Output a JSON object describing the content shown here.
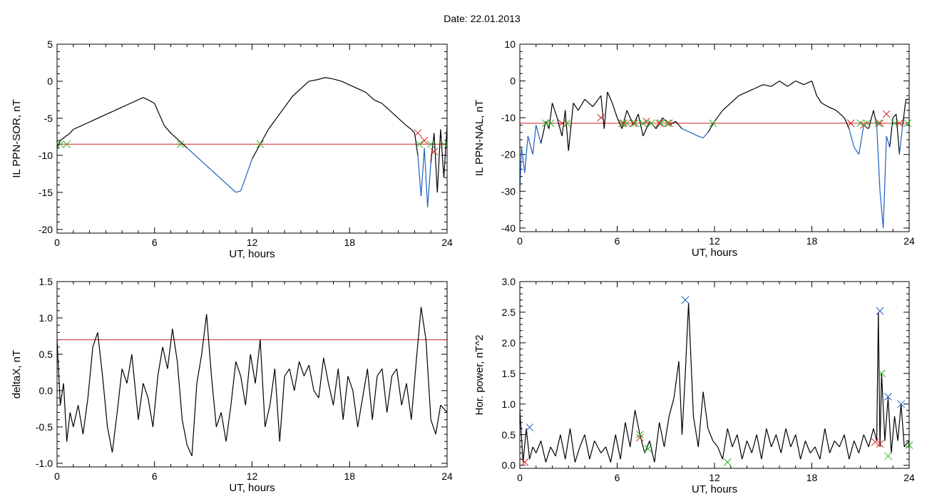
{
  "header": {
    "date_text": "Date:  22.01.2013"
  },
  "colors": {
    "frame": "#000000",
    "data": "#000000",
    "below": "#1f5fbf",
    "threshold": "#d62020",
    "mark_red": "#d62020",
    "mark_green": "#28b428",
    "mark_blue": "#1f5fbf"
  },
  "chart_data": [
    {
      "id": "p1",
      "type": "line",
      "xlabel": "UT, hours",
      "ylabel": "IL PPN-SOR, nT",
      "xlim": [
        0,
        24
      ],
      "ylim": [
        -20.5,
        5
      ],
      "xticks": [
        0,
        6,
        12,
        18,
        24
      ],
      "yticks": [
        5,
        0,
        -5,
        -10,
        -15,
        -20
      ],
      "threshold": -8.5,
      "x": [
        0,
        0.2,
        0.5,
        0.8,
        1,
        1.5,
        2,
        2.5,
        3,
        3.5,
        4,
        4.5,
        5,
        5.3,
        5.6,
        6,
        6.3,
        6.6,
        7,
        7.5,
        8,
        8.5,
        9,
        9.5,
        10,
        10.5,
        11,
        11.3,
        11.6,
        12,
        12.5,
        13,
        13.5,
        14,
        14.5,
        15,
        15.5,
        16,
        16.5,
        17,
        17.5,
        18,
        18.5,
        19,
        19.5,
        20,
        20.5,
        21,
        21.5,
        21.8,
        22,
        22.2,
        22.4,
        22.6,
        22.8,
        23,
        23.2,
        23.4,
        23.6,
        23.8,
        24
      ],
      "values": [
        -9,
        -8,
        -7.5,
        -7,
        -6.5,
        -6,
        -5.5,
        -5,
        -4.5,
        -4,
        -3.5,
        -3,
        -2.5,
        -2.2,
        -2.5,
        -3,
        -4.5,
        -6,
        -7,
        -8,
        -9,
        -10,
        -11,
        -12,
        -13,
        -14,
        -15,
        -14.8,
        -13,
        -10.5,
        -8.5,
        -6.5,
        -5,
        -3.5,
        -2,
        -1,
        0,
        0.2,
        0.5,
        0.3,
        0,
        -0.5,
        -1,
        -1.5,
        -2.5,
        -3,
        -4,
        -5,
        -6,
        -6.5,
        -7,
        -10,
        -15.5,
        -9,
        -17,
        -11,
        -7,
        -15,
        -6.5,
        -13,
        -6
      ],
      "markers_red_x": [
        22.2,
        22.6,
        23.2
      ],
      "markers_red_y": [
        -7,
        -8,
        -9.5
      ],
      "markers_green_x": [
        0.2,
        0.6,
        7.6,
        12.5,
        22.3,
        23,
        23.8
      ],
      "markers_green_y": [
        -8.5,
        -8.5,
        -8.5,
        -8.5,
        -8.5,
        -8.5,
        -8.5
      ]
    },
    {
      "id": "p2",
      "type": "line",
      "xlabel": "UT, hours",
      "ylabel": "IL PPN-NAL, nT",
      "xlim": [
        0,
        24
      ],
      "ylim": [
        -41,
        10
      ],
      "xticks": [
        0,
        6,
        12,
        18,
        24
      ],
      "yticks": [
        10,
        0,
        -10,
        -20,
        -30,
        -40
      ],
      "threshold": -11.5,
      "x": [
        0,
        0.1,
        0.3,
        0.5,
        0.8,
        1,
        1.3,
        1.6,
        1.8,
        2,
        2.3,
        2.6,
        2.8,
        3,
        3.3,
        3.6,
        4,
        4.5,
        5,
        5.2,
        5.4,
        5.7,
        6,
        6.3,
        6.6,
        7,
        7.3,
        7.6,
        8,
        8.4,
        8.8,
        9.2,
        9.6,
        10,
        10.5,
        11,
        11.3,
        11.6,
        12,
        12.5,
        13,
        13.5,
        14,
        14.5,
        15,
        15.5,
        16,
        16.5,
        17,
        17.5,
        18,
        18.3,
        18.6,
        19,
        19.5,
        20,
        20.3,
        20.6,
        20.9,
        21.2,
        21.5,
        21.8,
        22,
        22.2,
        22.4,
        22.6,
        22.8,
        23,
        23.2,
        23.4,
        23.6,
        23.8,
        24
      ],
      "values": [
        -30,
        -18,
        -25,
        -15,
        -20,
        -12,
        -17,
        -11,
        -13,
        -6,
        -10,
        -15,
        -8,
        -19,
        -6,
        -8,
        -5,
        -7,
        -4,
        -13,
        -3,
        -6,
        -10,
        -13,
        -8,
        -12,
        -9,
        -15,
        -11,
        -13,
        -10,
        -12,
        -11,
        -13,
        -14,
        -15,
        -15.5,
        -14,
        -11,
        -8,
        -6,
        -4,
        -3,
        -2,
        -1,
        -1.5,
        0,
        -1.5,
        0,
        -1,
        0,
        -4,
        -6,
        -7,
        -8,
        -10,
        -13,
        -18,
        -20,
        -12,
        -13,
        -8,
        -12,
        -30,
        -40,
        -15,
        -18,
        -10,
        -9,
        -20,
        -12,
        -5,
        -5
      ],
      "markers_red_x": [
        2.6,
        5,
        6.4,
        7,
        7.8,
        8.6,
        9.2,
        20.4,
        21.2,
        22.2,
        22.6,
        23.4
      ],
      "markers_red_y": [
        -11.5,
        -10,
        -11.5,
        -11.5,
        -11,
        -11.5,
        -11.5,
        -11.5,
        -12,
        -11.5,
        -9,
        -11.5
      ],
      "markers_green_x": [
        1.6,
        1.9,
        2.9,
        6.3,
        6.6,
        7.1,
        7.6,
        8.1,
        8.7,
        9.1,
        11.9,
        21,
        21.4,
        22.1,
        23.1,
        23.9
      ],
      "markers_green_y": [
        -11.5,
        -11.5,
        -11.5,
        -11.5,
        -11.5,
        -11.5,
        -11.5,
        -11.5,
        -11.5,
        -11.5,
        -11.5,
        -11.5,
        -11.5,
        -11.5,
        -11.5,
        -11.5
      ]
    },
    {
      "id": "p3",
      "type": "line",
      "xlabel": "UT, hours",
      "ylabel": "deltaX, nT",
      "xlim": [
        0,
        24
      ],
      "ylim": [
        -1.05,
        1.5
      ],
      "xticks": [
        0,
        6,
        12,
        18,
        24
      ],
      "yticks": [
        1.5,
        1.0,
        0.5,
        0.0,
        -0.5,
        -1.0
      ],
      "threshold": 0.7,
      "x": [
        0,
        0.2,
        0.4,
        0.6,
        0.8,
        1,
        1.3,
        1.6,
        1.9,
        2.2,
        2.5,
        2.8,
        3.1,
        3.4,
        3.7,
        4,
        4.3,
        4.6,
        5,
        5.3,
        5.6,
        5.9,
        6.2,
        6.5,
        6.8,
        7.1,
        7.4,
        7.7,
        8,
        8.3,
        8.6,
        8.9,
        9.2,
        9.5,
        9.8,
        10.1,
        10.4,
        10.7,
        11,
        11.3,
        11.6,
        11.9,
        12.2,
        12.5,
        12.8,
        13.1,
        13.4,
        13.7,
        14,
        14.3,
        14.6,
        14.9,
        15.2,
        15.5,
        15.8,
        16.1,
        16.4,
        16.7,
        17,
        17.3,
        17.6,
        17.9,
        18.2,
        18.5,
        18.8,
        19.1,
        19.4,
        19.7,
        20,
        20.3,
        20.6,
        20.9,
        21.2,
        21.5,
        21.8,
        22.1,
        22.4,
        22.7,
        23,
        23.3,
        23.6,
        24
      ],
      "values": [
        0.7,
        -0.2,
        0.1,
        -0.7,
        -0.3,
        -0.5,
        -0.2,
        -0.6,
        -0.1,
        0.6,
        0.8,
        0.2,
        -0.5,
        -0.85,
        -0.3,
        0.3,
        0.1,
        0.5,
        -0.4,
        0.1,
        -0.1,
        -0.5,
        0.2,
        0.6,
        0.3,
        0.85,
        0.4,
        -0.4,
        -0.75,
        -0.9,
        0.1,
        0.5,
        1.05,
        0.2,
        -0.5,
        -0.3,
        -0.7,
        -0.2,
        0.4,
        0.2,
        -0.2,
        0.5,
        0.1,
        0.7,
        -0.5,
        -0.2,
        0.3,
        -0.7,
        0.2,
        0.3,
        0.0,
        0.4,
        0.2,
        0.35,
        0.0,
        -0.1,
        0.45,
        0.1,
        -0.2,
        0.3,
        -0.4,
        0.2,
        0.0,
        -0.5,
        -0.1,
        0.3,
        -0.4,
        0.2,
        0.3,
        -0.3,
        0.2,
        0.3,
        -0.2,
        0.1,
        -0.4,
        0.4,
        1.15,
        0.7,
        -0.4,
        -0.6,
        -0.2,
        -0.3
      ]
    },
    {
      "id": "p4",
      "type": "line",
      "xlabel": "UT, hours",
      "ylabel": "Hor. power, nT^2",
      "xlim": [
        0,
        24
      ],
      "ylim": [
        -0.05,
        3.0
      ],
      "xticks": [
        0,
        6,
        12,
        18,
        24
      ],
      "yticks": [
        3.0,
        2.5,
        2.0,
        1.5,
        1.0,
        0.5,
        0.0
      ],
      "x": [
        0,
        0.2,
        0.4,
        0.6,
        0.8,
        1,
        1.3,
        1.6,
        1.9,
        2.2,
        2.5,
        2.8,
        3.1,
        3.4,
        3.7,
        4,
        4.3,
        4.6,
        5,
        5.3,
        5.6,
        5.9,
        6.2,
        6.5,
        6.8,
        7.1,
        7.4,
        7.7,
        8,
        8.3,
        8.6,
        8.9,
        9.2,
        9.5,
        9.8,
        10,
        10.2,
        10.4,
        10.7,
        11,
        11.3,
        11.6,
        11.9,
        12.2,
        12.5,
        12.8,
        13.1,
        13.4,
        13.7,
        14,
        14.3,
        14.6,
        14.9,
        15.2,
        15.5,
        15.8,
        16.1,
        16.4,
        16.7,
        17,
        17.3,
        17.6,
        17.9,
        18.2,
        18.5,
        18.8,
        19.1,
        19.4,
        19.7,
        20,
        20.3,
        20.6,
        20.9,
        21.2,
        21.5,
        21.8,
        22,
        22.1,
        22.2,
        22.3,
        22.5,
        22.7,
        22.9,
        23.1,
        23.3,
        23.5,
        23.7,
        24
      ],
      "values": [
        0.9,
        0.05,
        0.6,
        0.1,
        0.3,
        0.2,
        0.4,
        0.05,
        0.3,
        0.15,
        0.5,
        0.1,
        0.6,
        0.05,
        0.3,
        0.5,
        0.1,
        0.4,
        0.2,
        0.3,
        0.05,
        0.5,
        0.1,
        0.7,
        0.3,
        0.9,
        0.5,
        0.2,
        0.4,
        0.05,
        0.7,
        0.3,
        0.8,
        1.1,
        1.7,
        0.5,
        1.5,
        2.65,
        0.8,
        0.3,
        1.2,
        0.6,
        0.4,
        0.3,
        0.1,
        0.6,
        0.3,
        0.5,
        0.1,
        0.4,
        0.2,
        0.5,
        0.1,
        0.6,
        0.3,
        0.5,
        0.2,
        0.6,
        0.3,
        0.5,
        0.1,
        0.4,
        0.2,
        0.3,
        0.1,
        0.6,
        0.2,
        0.4,
        0.3,
        0.5,
        0.1,
        0.4,
        0.2,
        0.5,
        0.3,
        0.6,
        0.4,
        2.5,
        0.3,
        1.5,
        0.4,
        1.1,
        0.2,
        0.8,
        0.4,
        1.0,
        0.3,
        0.4
      ],
      "markers_blue_x": [
        0.6,
        10.2,
        22.2,
        22.7,
        23.5
      ],
      "markers_blue_y": [
        0.62,
        2.7,
        2.52,
        1.12,
        1.0
      ],
      "markers_red_x": [
        0.3,
        7.4,
        21.9,
        22.2
      ],
      "markers_red_y": [
        0.05,
        0.45,
        0.38,
        0.35
      ],
      "markers_green_x": [
        7.4,
        7.9,
        12.8,
        22.3,
        22.7,
        24
      ],
      "markers_green_y": [
        0.5,
        0.27,
        0.05,
        1.5,
        0.15,
        0.33
      ]
    }
  ]
}
